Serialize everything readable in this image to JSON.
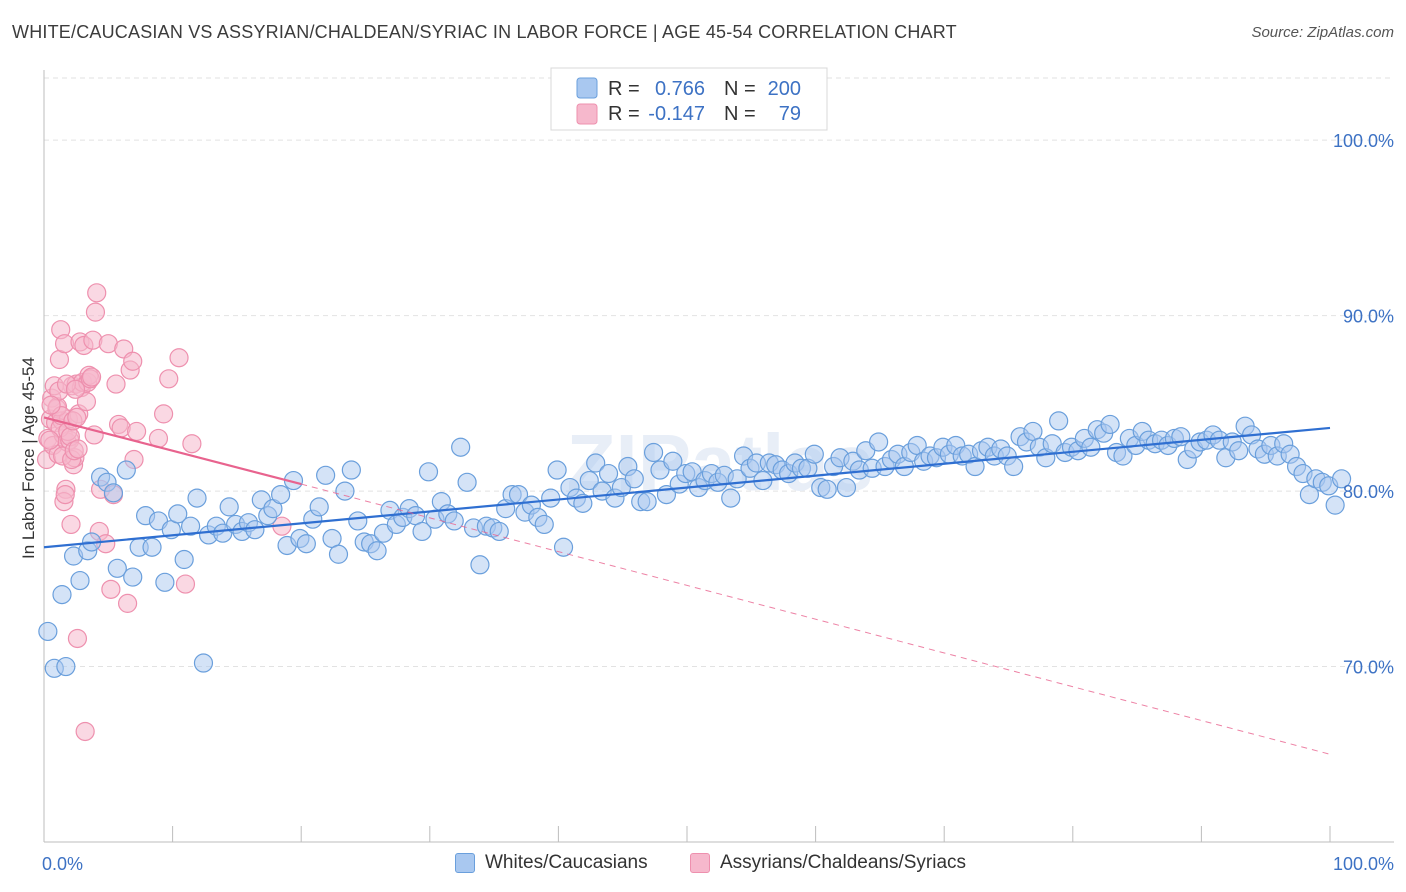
{
  "title": "WHITE/CAUCASIAN VS ASSYRIAN/CHALDEAN/SYRIAC IN LABOR FORCE | AGE 45-54 CORRELATION CHART",
  "source": "Source: ZipAtlas.com",
  "watermark": "ZIPatlas",
  "colors": {
    "blue_fill": "#a9c8f0",
    "blue_stroke": "#6a9fdc",
    "blue_line": "#2f6fd1",
    "pink_fill": "#f6b8cc",
    "pink_stroke": "#ee90ae",
    "pink_line": "#e8638e",
    "tick_text": "#3d72c4"
  },
  "legend": {
    "rows": [
      {
        "r_label": "R =",
        "r_value": "0.766",
        "n_label": "N =",
        "n_value": "200"
      },
      {
        "r_label": "R =",
        "r_value": "-0.147",
        "n_label": "N =",
        "n_value": "79"
      }
    ]
  },
  "chart_data": {
    "type": "scatter",
    "title": "WHITE/CAUCASIAN VS ASSYRIAN/CHALDEAN/SYRIAC IN LABOR FORCE | AGE 45-54 CORRELATION CHART",
    "xlabel": "",
    "ylabel": "In Labor Force | Age 45-54",
    "xlim": [
      0,
      100
    ],
    "ylim": [
      60,
      104
    ],
    "x_tick_labels": [
      "0.0%",
      "100.0%"
    ],
    "y_ticks": [
      70,
      80,
      90,
      100
    ],
    "y_tick_labels": [
      "70.0%",
      "80.0%",
      "90.0%",
      "100.0%"
    ],
    "grid": true,
    "legend_position": "top-center",
    "series": [
      {
        "name": "Whites/Caucasians",
        "r": 0.766,
        "n": 200,
        "trend": {
          "x": [
            0,
            100
          ],
          "y": [
            76.8,
            83.6
          ],
          "style": "solid"
        },
        "points": [
          [
            0.3,
            72.0
          ],
          [
            0.8,
            69.9
          ],
          [
            1.4,
            74.1
          ],
          [
            1.7,
            70.0
          ],
          [
            2.3,
            76.3
          ],
          [
            2.8,
            74.9
          ],
          [
            3.4,
            76.6
          ],
          [
            3.7,
            77.1
          ],
          [
            4.4,
            80.8
          ],
          [
            4.9,
            80.5
          ],
          [
            5.4,
            79.9
          ],
          [
            5.7,
            75.6
          ],
          [
            6.4,
            81.2
          ],
          [
            6.9,
            75.1
          ],
          [
            7.4,
            76.8
          ],
          [
            7.9,
            78.6
          ],
          [
            8.4,
            76.8
          ],
          [
            8.9,
            78.3
          ],
          [
            9.4,
            74.8
          ],
          [
            9.9,
            77.8
          ],
          [
            10.4,
            78.7
          ],
          [
            10.9,
            76.1
          ],
          [
            11.4,
            78.0
          ],
          [
            11.9,
            79.6
          ],
          [
            12.4,
            70.2
          ],
          [
            12.8,
            77.5
          ],
          [
            13.4,
            78.0
          ],
          [
            13.9,
            77.6
          ],
          [
            14.4,
            79.1
          ],
          [
            14.9,
            78.1
          ],
          [
            15.4,
            77.7
          ],
          [
            15.9,
            78.2
          ],
          [
            16.4,
            77.8
          ],
          [
            16.9,
            79.5
          ],
          [
            17.4,
            78.6
          ],
          [
            17.8,
            79.0
          ],
          [
            18.4,
            79.8
          ],
          [
            18.9,
            76.9
          ],
          [
            19.4,
            80.6
          ],
          [
            19.9,
            77.3
          ],
          [
            20.4,
            77.0
          ],
          [
            20.9,
            78.4
          ],
          [
            21.4,
            79.1
          ],
          [
            21.9,
            80.9
          ],
          [
            22.4,
            77.3
          ],
          [
            22.9,
            76.4
          ],
          [
            23.4,
            80.0
          ],
          [
            23.9,
            81.2
          ],
          [
            24.4,
            78.3
          ],
          [
            24.9,
            77.1
          ],
          [
            25.4,
            77.0
          ],
          [
            25.9,
            76.6
          ],
          [
            26.4,
            77.6
          ],
          [
            26.9,
            78.9
          ],
          [
            27.4,
            78.1
          ],
          [
            27.9,
            78.5
          ],
          [
            28.4,
            79.0
          ],
          [
            28.9,
            78.6
          ],
          [
            29.4,
            77.7
          ],
          [
            29.9,
            81.1
          ],
          [
            30.4,
            78.4
          ],
          [
            30.9,
            79.4
          ],
          [
            31.4,
            78.7
          ],
          [
            31.9,
            78.3
          ],
          [
            32.4,
            82.5
          ],
          [
            32.9,
            80.5
          ],
          [
            33.4,
            77.9
          ],
          [
            33.9,
            75.8
          ],
          [
            34.4,
            78.0
          ],
          [
            34.9,
            77.9
          ],
          [
            35.4,
            77.7
          ],
          [
            35.9,
            79.0
          ],
          [
            36.4,
            79.8
          ],
          [
            36.9,
            79.8
          ],
          [
            37.4,
            78.8
          ],
          [
            37.9,
            79.2
          ],
          [
            38.4,
            78.5
          ],
          [
            38.9,
            78.1
          ],
          [
            39.4,
            79.6
          ],
          [
            39.9,
            81.2
          ],
          [
            40.4,
            76.8
          ],
          [
            40.9,
            80.2
          ],
          [
            41.4,
            79.6
          ],
          [
            41.9,
            79.3
          ],
          [
            42.4,
            80.6
          ],
          [
            42.9,
            81.6
          ],
          [
            43.4,
            80.0
          ],
          [
            43.9,
            81.0
          ],
          [
            44.4,
            79.6
          ],
          [
            44.9,
            80.2
          ],
          [
            45.4,
            81.4
          ],
          [
            45.9,
            80.7
          ],
          [
            46.4,
            79.4
          ],
          [
            46.9,
            79.4
          ],
          [
            47.4,
            82.2
          ],
          [
            47.9,
            81.2
          ],
          [
            48.4,
            79.8
          ],
          [
            48.9,
            81.7
          ],
          [
            49.4,
            80.4
          ],
          [
            49.9,
            81.0
          ],
          [
            50.4,
            81.1
          ],
          [
            50.9,
            80.2
          ],
          [
            51.4,
            80.6
          ],
          [
            51.9,
            81.0
          ],
          [
            52.4,
            80.5
          ],
          [
            52.9,
            80.9
          ],
          [
            53.4,
            79.6
          ],
          [
            53.9,
            80.7
          ],
          [
            54.4,
            82.0
          ],
          [
            54.9,
            81.3
          ],
          [
            55.4,
            81.6
          ],
          [
            55.9,
            80.6
          ],
          [
            56.4,
            81.6
          ],
          [
            56.9,
            81.5
          ],
          [
            57.4,
            81.2
          ],
          [
            57.9,
            81.0
          ],
          [
            58.4,
            81.6
          ],
          [
            58.9,
            81.3
          ],
          [
            59.4,
            81.3
          ],
          [
            59.9,
            82.1
          ],
          [
            60.4,
            80.2
          ],
          [
            60.9,
            80.1
          ],
          [
            61.4,
            81.4
          ],
          [
            61.9,
            81.9
          ],
          [
            62.4,
            80.2
          ],
          [
            62.9,
            81.7
          ],
          [
            63.4,
            81.2
          ],
          [
            63.9,
            82.3
          ],
          [
            64.4,
            81.3
          ],
          [
            64.9,
            82.8
          ],
          [
            65.4,
            81.4
          ],
          [
            65.9,
            81.8
          ],
          [
            66.4,
            82.1
          ],
          [
            66.9,
            81.4
          ],
          [
            67.4,
            82.2
          ],
          [
            67.9,
            82.6
          ],
          [
            68.4,
            81.7
          ],
          [
            68.9,
            82.0
          ],
          [
            69.4,
            81.9
          ],
          [
            69.9,
            82.5
          ],
          [
            70.4,
            82.1
          ],
          [
            70.9,
            82.6
          ],
          [
            71.4,
            82.0
          ],
          [
            71.9,
            82.1
          ],
          [
            72.4,
            81.4
          ],
          [
            72.9,
            82.3
          ],
          [
            73.4,
            82.5
          ],
          [
            73.9,
            82.0
          ],
          [
            74.4,
            82.4
          ],
          [
            74.9,
            82.0
          ],
          [
            75.4,
            81.4
          ],
          [
            75.9,
            83.1
          ],
          [
            76.4,
            82.8
          ],
          [
            76.9,
            83.4
          ],
          [
            77.4,
            82.5
          ],
          [
            77.9,
            81.9
          ],
          [
            78.4,
            82.7
          ],
          [
            78.9,
            84.0
          ],
          [
            79.4,
            82.2
          ],
          [
            79.9,
            82.5
          ],
          [
            80.4,
            82.3
          ],
          [
            80.9,
            83.0
          ],
          [
            81.4,
            82.5
          ],
          [
            81.9,
            83.5
          ],
          [
            82.4,
            83.3
          ],
          [
            82.9,
            83.8
          ],
          [
            83.4,
            82.2
          ],
          [
            83.9,
            82.0
          ],
          [
            84.4,
            83.0
          ],
          [
            84.9,
            82.6
          ],
          [
            85.4,
            83.4
          ],
          [
            85.9,
            82.9
          ],
          [
            86.4,
            82.7
          ],
          [
            86.9,
            82.9
          ],
          [
            87.4,
            82.6
          ],
          [
            87.9,
            83.0
          ],
          [
            88.4,
            83.1
          ],
          [
            88.9,
            81.8
          ],
          [
            89.4,
            82.4
          ],
          [
            89.9,
            82.8
          ],
          [
            90.4,
            82.9
          ],
          [
            90.9,
            83.2
          ],
          [
            91.4,
            82.9
          ],
          [
            91.9,
            81.9
          ],
          [
            92.4,
            82.8
          ],
          [
            92.9,
            82.3
          ],
          [
            93.4,
            83.7
          ],
          [
            93.9,
            83.2
          ],
          [
            94.4,
            82.4
          ],
          [
            94.9,
            82.1
          ],
          [
            95.4,
            82.6
          ],
          [
            95.9,
            82.0
          ],
          [
            96.4,
            82.7
          ],
          [
            96.9,
            82.1
          ],
          [
            97.4,
            81.4
          ],
          [
            97.9,
            81.0
          ],
          [
            98.4,
            79.8
          ],
          [
            98.9,
            80.7
          ],
          [
            99.4,
            80.5
          ],
          [
            99.9,
            80.3
          ],
          [
            100.4,
            79.2
          ],
          [
            100.9,
            80.7
          ]
        ]
      },
      {
        "name": "Assyrians/Chaldeans/Syriacs",
        "r": -0.147,
        "n": 79,
        "trend": {
          "x": [
            0,
            20
          ],
          "y": [
            84.2,
            80.4
          ],
          "style": "solid"
        },
        "trend_extension": {
          "x": [
            20,
            100
          ],
          "y": [
            80.4,
            65.0
          ],
          "style": "dashed"
        },
        "points": [
          [
            0.2,
            81.8
          ],
          [
            0.3,
            83.0
          ],
          [
            0.5,
            84.1
          ],
          [
            0.6,
            85.3
          ],
          [
            0.7,
            82.6
          ],
          [
            0.8,
            86.0
          ],
          [
            0.9,
            83.9
          ],
          [
            1.0,
            84.7
          ],
          [
            1.1,
            82.1
          ],
          [
            1.2,
            87.5
          ],
          [
            1.3,
            89.2
          ],
          [
            1.4,
            84.0
          ],
          [
            1.5,
            83.2
          ],
          [
            1.6,
            88.4
          ],
          [
            1.7,
            80.1
          ],
          [
            1.8,
            82.8
          ],
          [
            1.9,
            84.1
          ],
          [
            2.0,
            82.9
          ],
          [
            2.1,
            78.1
          ],
          [
            2.2,
            86.0
          ],
          [
            2.3,
            81.5
          ],
          [
            2.4,
            81.9
          ],
          [
            2.5,
            86.1
          ],
          [
            2.6,
            71.6
          ],
          [
            2.7,
            84.4
          ],
          [
            2.8,
            88.5
          ],
          [
            2.9,
            85.9
          ],
          [
            3.0,
            86.2
          ],
          [
            3.1,
            88.3
          ],
          [
            3.2,
            66.3
          ],
          [
            3.3,
            85.1
          ],
          [
            3.4,
            86.2
          ],
          [
            3.5,
            86.6
          ],
          [
            3.6,
            86.4
          ],
          [
            3.7,
            86.5
          ],
          [
            3.8,
            88.6
          ],
          [
            3.9,
            83.2
          ],
          [
            4.0,
            90.2
          ],
          [
            4.1,
            91.3
          ],
          [
            4.3,
            77.7
          ],
          [
            4.4,
            80.1
          ],
          [
            4.8,
            77.0
          ],
          [
            5.0,
            88.4
          ],
          [
            5.2,
            74.4
          ],
          [
            5.4,
            79.8
          ],
          [
            5.6,
            86.1
          ],
          [
            5.8,
            83.8
          ],
          [
            6.0,
            83.6
          ],
          [
            6.2,
            88.1
          ],
          [
            6.5,
            73.6
          ],
          [
            6.7,
            86.9
          ],
          [
            6.9,
            87.4
          ],
          [
            7.0,
            81.8
          ],
          [
            7.2,
            83.4
          ],
          [
            8.9,
            83.0
          ],
          [
            9.3,
            84.4
          ],
          [
            9.7,
            86.4
          ],
          [
            10.5,
            87.6
          ],
          [
            11.0,
            74.7
          ],
          [
            11.5,
            82.7
          ],
          [
            18.5,
            78.0
          ],
          [
            1.05,
            84.8
          ],
          [
            1.15,
            85.7
          ],
          [
            1.25,
            83.6
          ],
          [
            1.35,
            84.3
          ],
          [
            1.45,
            82.0
          ],
          [
            1.55,
            79.4
          ],
          [
            1.65,
            79.8
          ],
          [
            1.75,
            86.1
          ],
          [
            1.85,
            83.4
          ],
          [
            2.05,
            83.1
          ],
          [
            2.15,
            81.8
          ],
          [
            2.25,
            84.0
          ],
          [
            2.35,
            82.3
          ],
          [
            2.45,
            85.8
          ],
          [
            2.55,
            84.2
          ],
          [
            2.65,
            82.4
          ],
          [
            0.45,
            82.9
          ],
          [
            0.55,
            84.9
          ]
        ]
      }
    ]
  },
  "bottom_legend": [
    {
      "label": "Whites/Caucasians"
    },
    {
      "label": "Assyrians/Chaldeans/Syriacs"
    }
  ]
}
